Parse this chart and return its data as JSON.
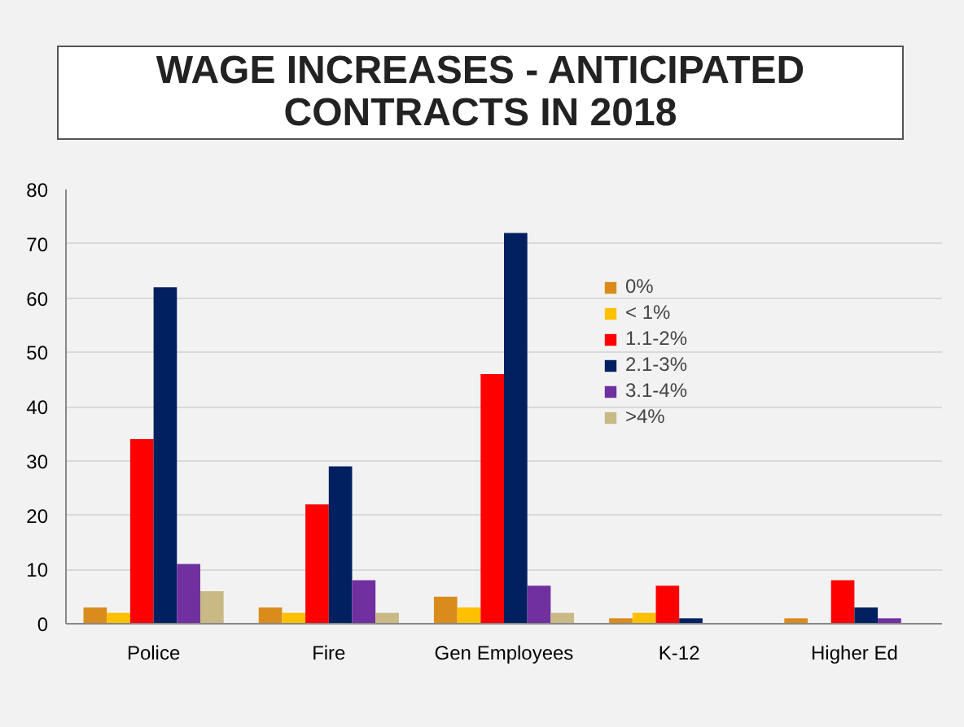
{
  "chart_data": {
    "type": "bar",
    "title": "WAGE INCREASES - ANTICIPATED CONTRACTS IN 2018",
    "categories": [
      "Police",
      "Fire",
      "Gen Employees",
      "K-12",
      "Higher Ed"
    ],
    "series": [
      {
        "name": "0%",
        "color": "#d98c1c",
        "values": [
          3,
          3,
          5,
          1,
          1
        ]
      },
      {
        "name": "< 1%",
        "color": "#ffc000",
        "values": [
          2,
          2,
          3,
          2,
          0
        ]
      },
      {
        "name": "1.1-2%",
        "color": "#ff0000",
        "values": [
          34,
          22,
          46,
          7,
          8
        ]
      },
      {
        "name": "2.1-3%",
        "color": "#002060",
        "values": [
          62,
          29,
          72,
          1,
          3
        ]
      },
      {
        "name": "3.1-4%",
        "color": "#7030a0",
        "values": [
          11,
          8,
          7,
          0,
          1
        ]
      },
      {
        "name": ">4%",
        "color": "#c9b985",
        "values": [
          6,
          2,
          2,
          0,
          0
        ]
      }
    ],
    "ylim": [
      0,
      80
    ],
    "yticks": [
      0,
      10,
      20,
      30,
      40,
      50,
      60,
      70,
      80
    ],
    "grid": "y",
    "legend": "top right"
  }
}
